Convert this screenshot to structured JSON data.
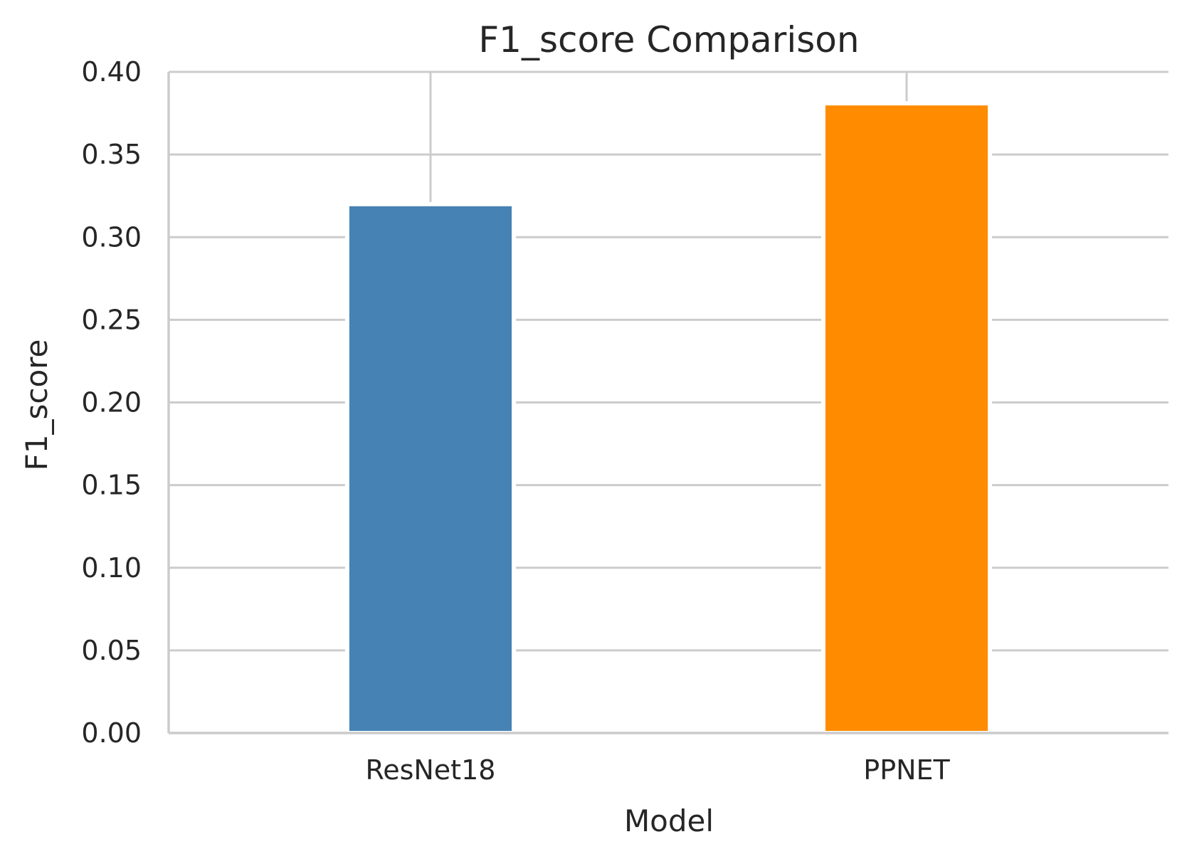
{
  "chart_data": {
    "type": "bar",
    "title": "F1_score Comparison",
    "xlabel": "Model",
    "ylabel": "F1_score",
    "categories": [
      "ResNet18",
      "PPNET"
    ],
    "values": [
      0.32,
      0.381
    ],
    "colors": [
      "#4682b4",
      "#ff8c00"
    ],
    "ylim": [
      0,
      0.4
    ],
    "yticks": [
      0.0,
      0.05,
      0.1,
      0.15,
      0.2,
      0.25,
      0.3,
      0.35,
      0.4
    ],
    "ytick_labels": [
      "0.00",
      "0.05",
      "0.10",
      "0.15",
      "0.20",
      "0.25",
      "0.30",
      "0.35",
      "0.40"
    ],
    "grid": true,
    "grid_color": "#cccccc",
    "background": "#ffffff"
  }
}
